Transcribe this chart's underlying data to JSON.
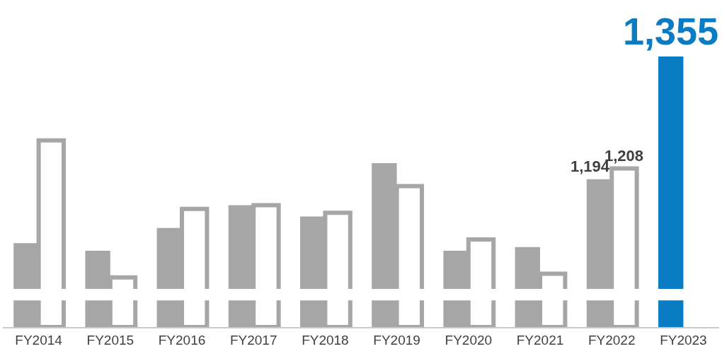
{
  "chart_data": {
    "type": "bar",
    "categories": [
      "FY2014",
      "FY2015",
      "FY2016",
      "FY2017",
      "FY2018",
      "FY2019",
      "FY2020",
      "FY2021",
      "FY2022",
      "FY2023"
    ],
    "ylim": [
      1000,
      1355
    ],
    "series": [
      {
        "color": "#a6a6a6",
        "colors": [
          "#a6a6a6",
          "#a6a6a6",
          "#a6a6a6",
          "#a6a6a6",
          "#a6a6a6",
          "#a6a6a6",
          "#a6a6a6",
          "#a6a6a6",
          "#a6a6a6",
          "#0a7cc4"
        ],
        "values": [
          1110,
          1100,
          1130,
          1160,
          1145,
          1215,
          1100,
          1105,
          1194,
          1355
        ],
        "value_labels": [
          null,
          null,
          null,
          null,
          null,
          null,
          null,
          null,
          "1,194",
          "1,355"
        ]
      },
      {
        "color": "#a6a6a6",
        "values": [
          1245,
          1065,
          1155,
          1160,
          1150,
          1185,
          1115,
          1070,
          1208,
          null
        ],
        "value_labels": [
          null,
          null,
          null,
          null,
          null,
          null,
          null,
          null,
          "1,208",
          null
        ]
      }
    ],
    "bands": [
      {
        "axis": "y",
        "from": 1035,
        "to": 1050,
        "color": "#ffffff"
      }
    ]
  }
}
